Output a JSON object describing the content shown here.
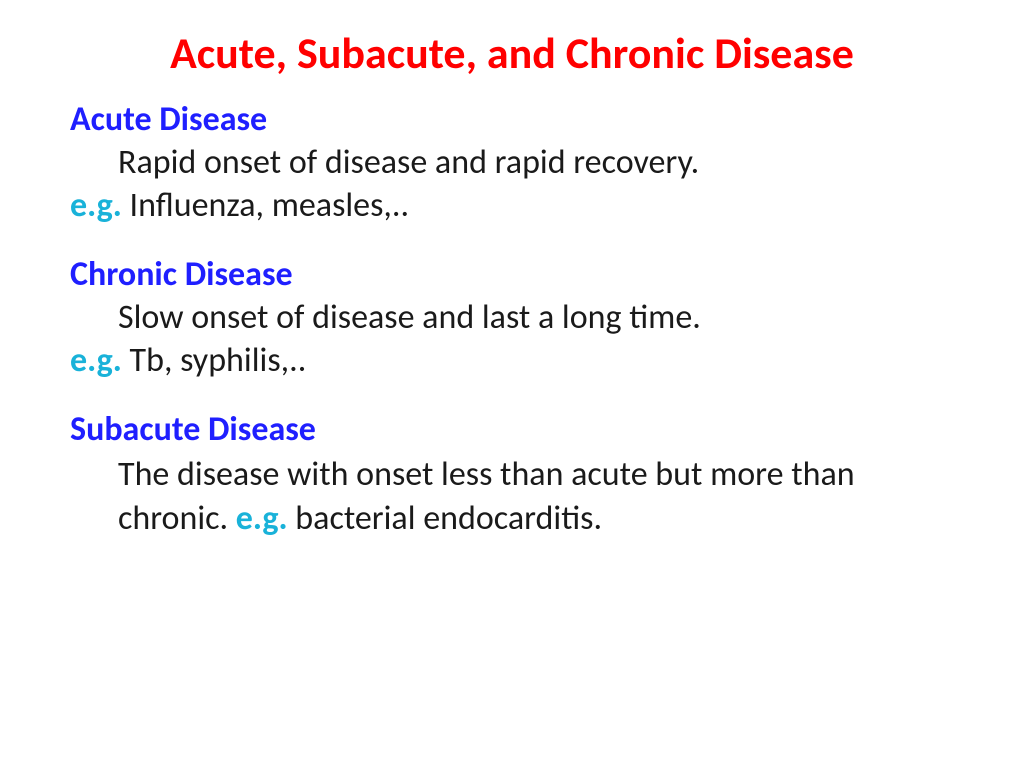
{
  "colors": {
    "title": "#ff0000",
    "heading": "#1f1fff",
    "body": "#1a1a1a",
    "eg": "#19b2d9",
    "background": "#ffffff"
  },
  "fonts": {
    "title_size": 44,
    "heading_size": 34,
    "body_size": 34,
    "eg_size": 34
  },
  "title": "Acute, Subacute, and Chronic Disease",
  "sections": [
    {
      "heading": "Acute Disease",
      "description": "Rapid onset of disease and rapid recovery.",
      "eg_label": "e.g.",
      "eg_text": " Influenza, measles,.."
    },
    {
      "heading": "Chronic Disease",
      "description": "Slow onset of disease and last a long time.",
      "eg_label": "e.g.",
      "eg_text": " Tb, syphilis,.."
    },
    {
      "heading": "Subacute Disease",
      "description_pre": "The disease with onset less than acute but more than chronic. ",
      "eg_label": "e.g.",
      "description_post": " bacterial endocarditis."
    }
  ]
}
